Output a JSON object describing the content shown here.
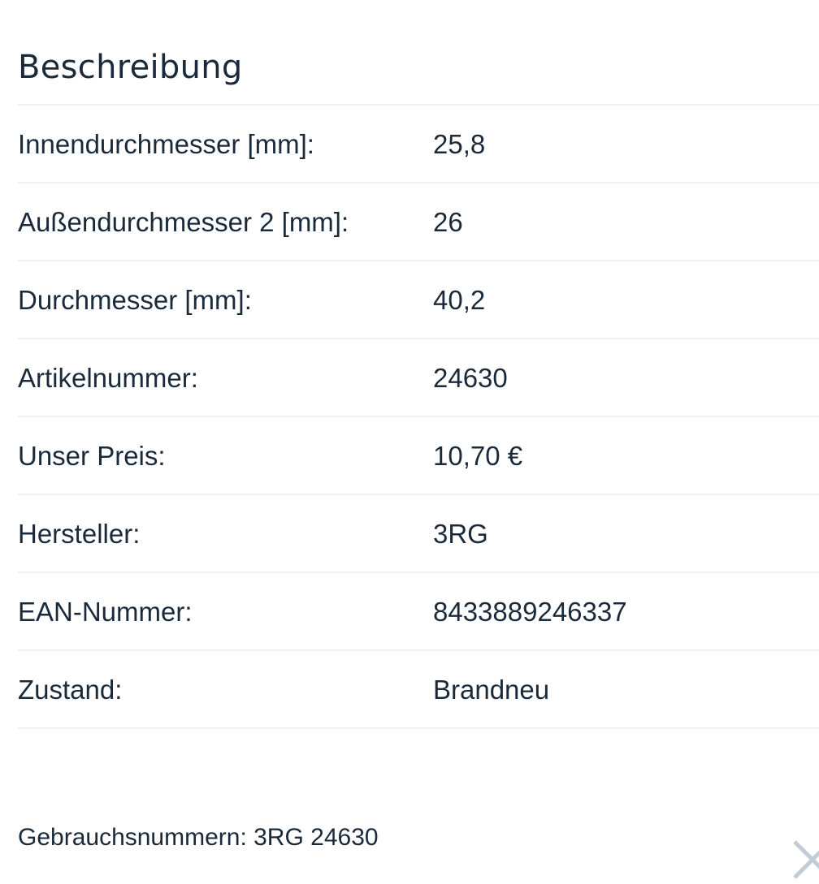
{
  "section": {
    "title": "Beschreibung"
  },
  "specs": [
    {
      "label": "Innendurchmesser [mm]:",
      "value": "25,8"
    },
    {
      "label": "Außendurchmesser 2 [mm]:",
      "value": "26"
    },
    {
      "label": "Durchmesser [mm]:",
      "value": "40,2"
    },
    {
      "label": "Artikelnummer:",
      "value": "24630"
    },
    {
      "label": "Unser Preis:",
      "value": "10,70 €"
    },
    {
      "label": "Hersteller:",
      "value": "3RG"
    },
    {
      "label": "EAN-Nummer:",
      "value": "8433889246337"
    },
    {
      "label": "Zustand:",
      "value": "Brandneu"
    }
  ],
  "footer": {
    "text": "Gebrauchsnummern: 3RG 24630"
  },
  "icons": {
    "close": "close-icon"
  },
  "colors": {
    "text": "#1b2a3a",
    "divider": "#eef0f2",
    "close_icon": "#c3ccd6"
  }
}
